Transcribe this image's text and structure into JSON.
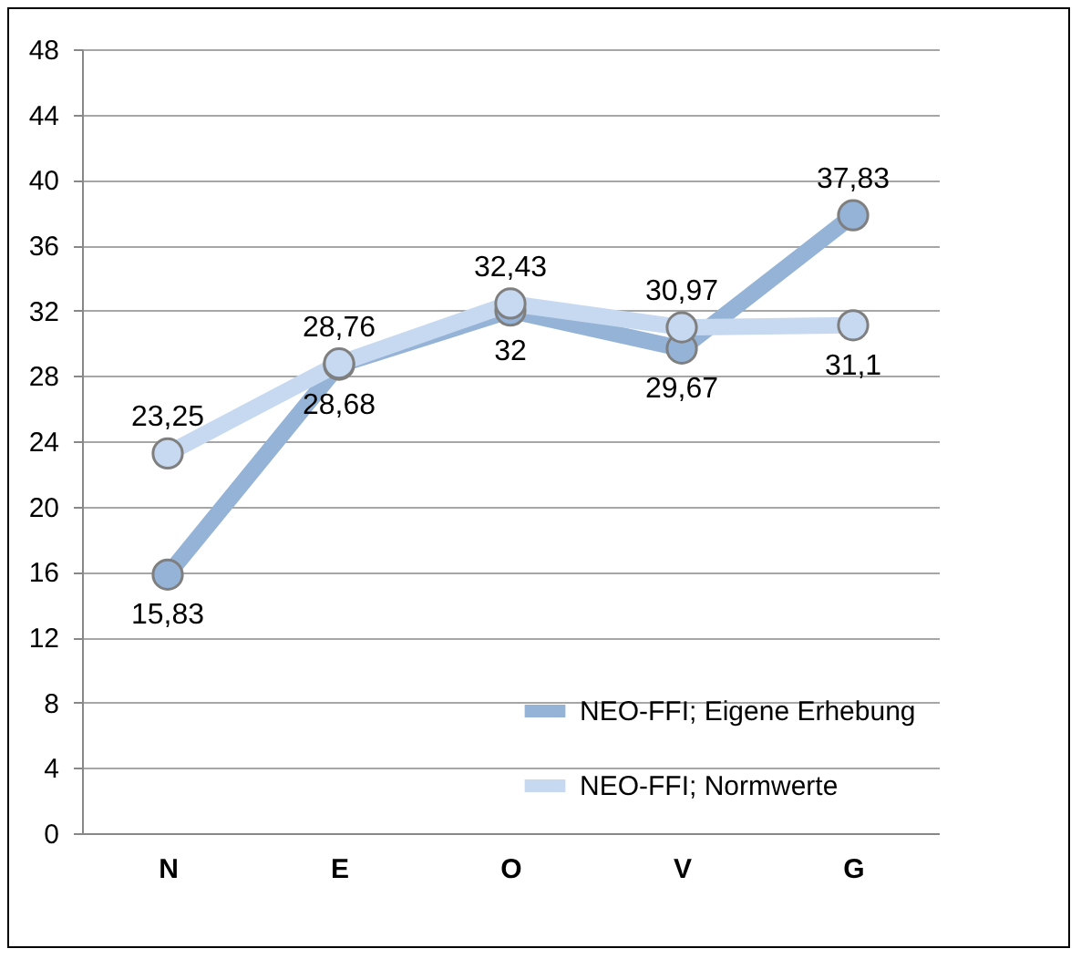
{
  "chart_data": {
    "type": "line",
    "categories": [
      "N",
      "E",
      "O",
      "V",
      "G"
    ],
    "series": [
      {
        "name": "NEO-FFI; Eigene Erhebung",
        "color": "#95b3d7",
        "values": [
          15.83,
          28.68,
          32,
          29.67,
          37.83
        ],
        "value_labels": [
          "15,83",
          "28,68",
          "32",
          "29,67",
          "37,83"
        ]
      },
      {
        "name": "NEO-FFI; Normwerte",
        "color": "#c6d9f1",
        "values": [
          23.25,
          28.76,
          32.43,
          30.97,
          31.1
        ],
        "value_labels": [
          "23,25",
          "28,76",
          "32,43",
          "30,97",
          "31,1"
        ]
      }
    ],
    "ylim": [
      0,
      48
    ],
    "yticks": [
      0,
      4,
      8,
      12,
      16,
      20,
      24,
      28,
      32,
      36,
      40,
      44,
      48
    ],
    "grid": "y",
    "legend": "bottom right",
    "marker": "circle",
    "line_style": "solid"
  }
}
